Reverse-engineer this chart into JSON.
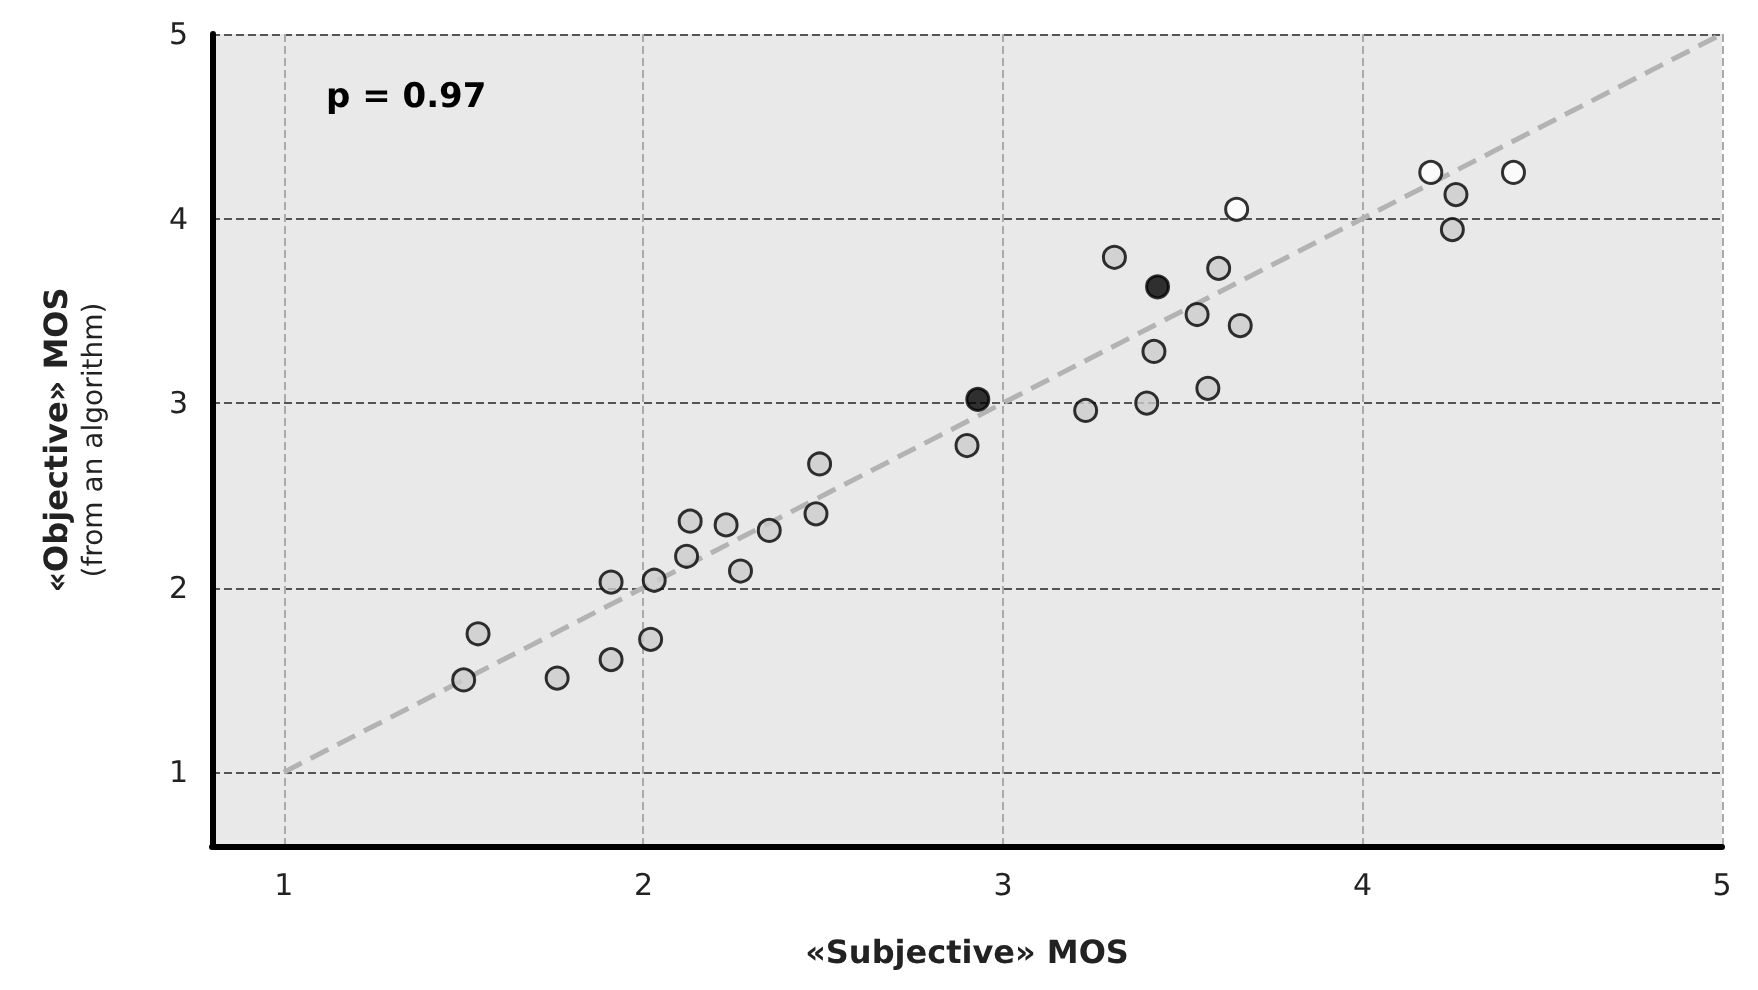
{
  "chart_data": {
    "type": "scatter",
    "xlabel": "«Subjective» MOS",
    "ylabel": "«Objective» MOS\n(from an algorithm)",
    "annotations": [
      "p = 0.97"
    ],
    "series": [
      {
        "color": "#cccccc",
        "x": [
          1.5,
          1.54,
          1.76,
          1.91,
          2.02,
          1.91,
          2.03,
          2.12,
          2.13,
          2.23,
          2.35,
          2.27,
          2.48,
          2.49,
          2.9,
          3.23,
          3.4,
          3.57,
          3.42,
          3.54,
          3.66,
          3.31,
          3.6,
          4.26,
          4.25
        ],
        "values": [
          1.5,
          1.75,
          1.51,
          1.61,
          1.72,
          2.03,
          2.04,
          2.17,
          2.36,
          2.34,
          2.31,
          2.09,
          2.4,
          2.67,
          2.77,
          2.96,
          3.0,
          3.08,
          3.28,
          3.48,
          3.42,
          3.79,
          3.73,
          4.13,
          3.94
        ]
      },
      {
        "color": "#000000",
        "x": [
          2.93,
          3.43
        ],
        "values": [
          3.02,
          3.63
        ]
      },
      {
        "color": "#ffffff",
        "x": [
          3.65,
          4.19,
          4.42
        ],
        "values": [
          4.05,
          4.25,
          4.25
        ]
      },
      {
        "type": "line",
        "color": "#b3b3b3",
        "line_style": "dashed",
        "marker": "none",
        "x": [
          1,
          5
        ],
        "values": [
          1,
          5
        ]
      }
    ],
    "xlim": [
      0.8,
      5
    ],
    "ylim": [
      0.6,
      5
    ],
    "xticks": [
      1,
      2,
      3,
      4,
      5
    ],
    "yticks": [
      1,
      2,
      3,
      4,
      5
    ],
    "grid": true,
    "marker": "circle"
  }
}
